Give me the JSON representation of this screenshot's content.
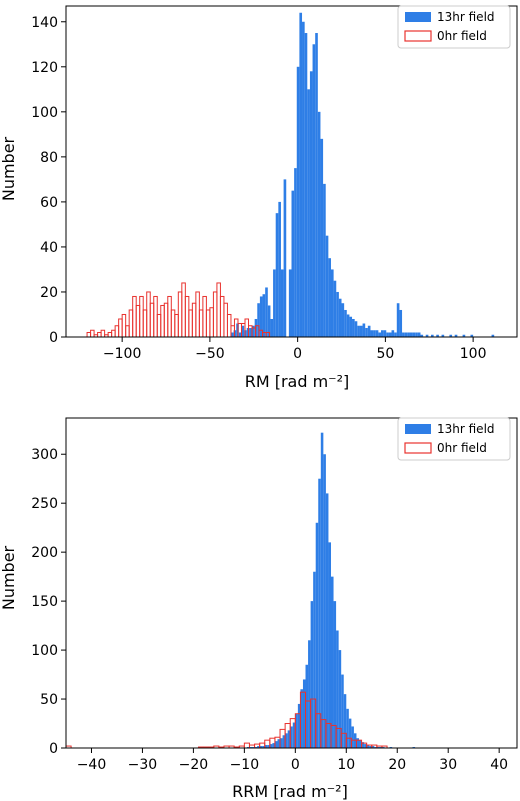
{
  "chart_data": [
    {
      "type": "bar",
      "xlabel": "RM [rad m⁻²]",
      "ylabel": "Number",
      "xlim": [
        -132,
        125
      ],
      "ylim": [
        0,
        147
      ],
      "xticks": [
        -100,
        -50,
        0,
        50,
        100
      ],
      "yticks": [
        0,
        20,
        40,
        60,
        80,
        100,
        120,
        140
      ],
      "xtick_labels": [
        "−100",
        "−50",
        "0",
        "50",
        "100"
      ],
      "ytick_labels": [
        "0",
        "20",
        "40",
        "60",
        "80",
        "100",
        "120",
        "140"
      ],
      "legend_position": "upper right",
      "colors": {
        "13hr": "#2e7ee6",
        "0hr": "#e8322e"
      },
      "series": [
        {
          "name": "13hr field",
          "style": "filled",
          "bin_start": -50,
          "bin_width": 1.5,
          "values": [
            0,
            0,
            0,
            0,
            0,
            0,
            0,
            0,
            2,
            3,
            6,
            2,
            5,
            3,
            4,
            4,
            5,
            8,
            15,
            18,
            19,
            22,
            14,
            8,
            30,
            55,
            60,
            30,
            70,
            0,
            30,
            65,
            75,
            120,
            144,
            140,
            135,
            110,
            118,
            130,
            135,
            100,
            88,
            68,
            45,
            35,
            30,
            25,
            20,
            17,
            15,
            12,
            10,
            9,
            8,
            7,
            5,
            5,
            6,
            4,
            5,
            3,
            3,
            3,
            2,
            3,
            3,
            2,
            2,
            3,
            2,
            15,
            12,
            2,
            2,
            2,
            2,
            2,
            2,
            2,
            1,
            0,
            1,
            0,
            1,
            0,
            1,
            0,
            1,
            0,
            0,
            1,
            0,
            1,
            0,
            0,
            1,
            0,
            0,
            1,
            0,
            0,
            0,
            0,
            0,
            0,
            0,
            1
          ]
        },
        {
          "name": "0hr field",
          "style": "step",
          "bin_start": -120,
          "bin_width": 2,
          "values": [
            2,
            3,
            1,
            2,
            3,
            1,
            2,
            3,
            5,
            8,
            10,
            5,
            12,
            18,
            14,
            18,
            12,
            20,
            15,
            18,
            10,
            14,
            15,
            18,
            12,
            10,
            20,
            24,
            18,
            12,
            15,
            20,
            12,
            18,
            12,
            13,
            20,
            24,
            18,
            15,
            10,
            5,
            8,
            6,
            6,
            8,
            5,
            4,
            5,
            3,
            2,
            2,
            0
          ]
        }
      ]
    },
    {
      "type": "bar",
      "xlabel": "RRM [rad m⁻²]",
      "ylabel": "Number",
      "xlim": [
        -45,
        43.5
      ],
      "ylim": [
        0,
        337
      ],
      "xticks": [
        -40,
        -30,
        -20,
        -10,
        0,
        10,
        20,
        30,
        40
      ],
      "yticks": [
        0,
        50,
        100,
        150,
        200,
        250,
        300
      ],
      "xtick_labels": [
        "−40",
        "−30",
        "−20",
        "−10",
        "0",
        "10",
        "20",
        "30",
        "40"
      ],
      "ytick_labels": [
        "0",
        "50",
        "100",
        "150",
        "200",
        "250",
        "300"
      ],
      "legend_position": "upper right",
      "colors": {
        "13hr": "#2e7ee6",
        "0hr": "#e8322e"
      },
      "series": [
        {
          "name": "13hr field",
          "style": "filled",
          "bin_start": -45,
          "bin_width": 0.5,
          "values": [
            0,
            0,
            0,
            0,
            0,
            0,
            0,
            0,
            0,
            0,
            0,
            0,
            0,
            0,
            0,
            0,
            0,
            0,
            0,
            0,
            0,
            0,
            0,
            0,
            0,
            0,
            0,
            0,
            0,
            0,
            0,
            0,
            0,
            0,
            0,
            0,
            0,
            0,
            0,
            0,
            0,
            0,
            0,
            0,
            0,
            0,
            0,
            0,
            0,
            0,
            0,
            0,
            0,
            0,
            0,
            0,
            0,
            0,
            0,
            0,
            0,
            0,
            0,
            0,
            0,
            0,
            0,
            0,
            0,
            0,
            0,
            1,
            1,
            1,
            1,
            2,
            2,
            2,
            3,
            3,
            4,
            5,
            7,
            9,
            10,
            13,
            15,
            18,
            22,
            26,
            35,
            45,
            60,
            70,
            85,
            110,
            150,
            180,
            230,
            275,
            322,
            300,
            260,
            210,
            175,
            150,
            120,
            100,
            75,
            55,
            40,
            30,
            22,
            15,
            10,
            8,
            6,
            4,
            3,
            2,
            2,
            1,
            1,
            1,
            1,
            0,
            0,
            1,
            0,
            0,
            0,
            0,
            0,
            0,
            0,
            0,
            1,
            0,
            0,
            0,
            0,
            0,
            0,
            0,
            0,
            0,
            0,
            0,
            0,
            0,
            0,
            0,
            0,
            0,
            0,
            0,
            0,
            0,
            0,
            0,
            0,
            0,
            0,
            0,
            0,
            0,
            0,
            0,
            0,
            0,
            0,
            0,
            0,
            0,
            0,
            0,
            0,
            0,
            0,
            0,
            0
          ]
        },
        {
          "name": "0hr field",
          "style": "step",
          "bin_start": -45,
          "bin_width": 1,
          "values": [
            2,
            0,
            0,
            0,
            0,
            0,
            0,
            0,
            0,
            0,
            0,
            0,
            0,
            0,
            0,
            0,
            0,
            0,
            0,
            0,
            0,
            0,
            0,
            0,
            0,
            0,
            1,
            1,
            1,
            2,
            1,
            2,
            2,
            1,
            2,
            5,
            3,
            4,
            5,
            8,
            10,
            11,
            19,
            25,
            30,
            35,
            57,
            48,
            50,
            35,
            29,
            25,
            23,
            20,
            15,
            10,
            8,
            8,
            5,
            3,
            3,
            2,
            2,
            0
          ]
        }
      ]
    }
  ]
}
